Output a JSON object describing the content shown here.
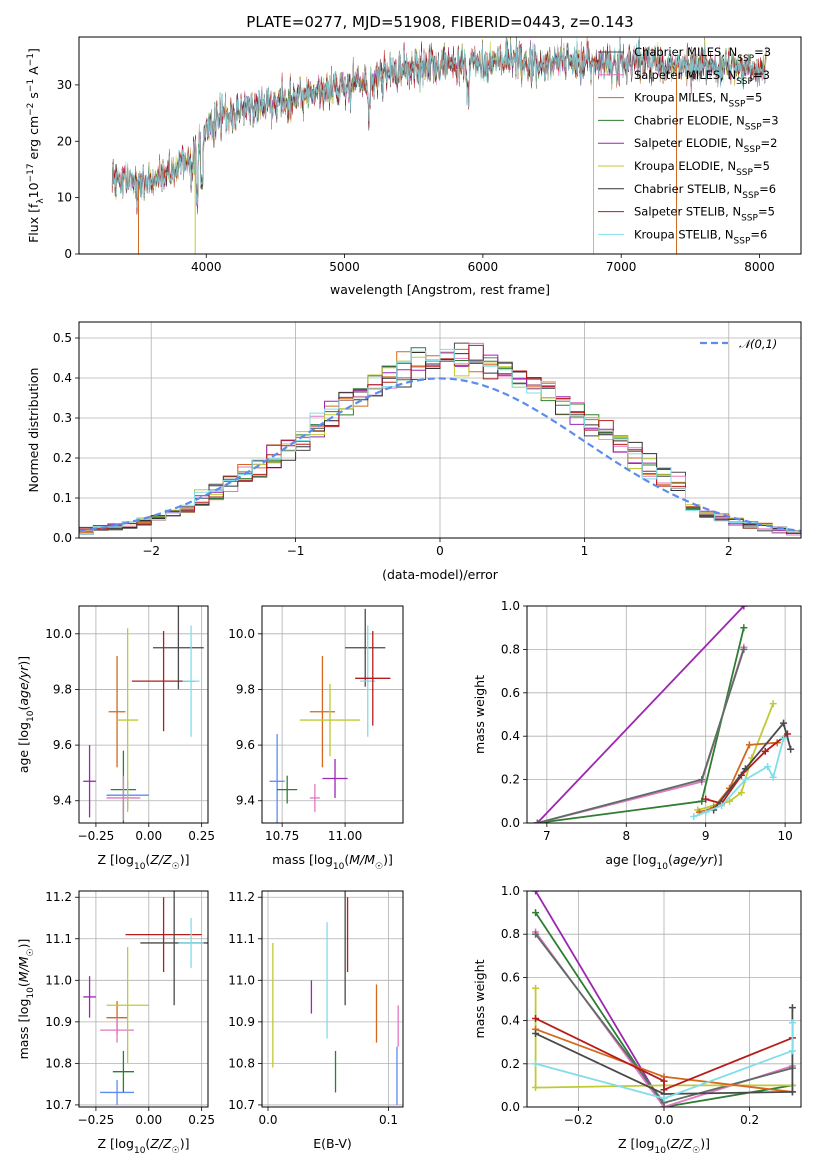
{
  "chart_data": [
    {
      "id": "spectrum",
      "type": "line",
      "title": "PLATE=0277, MJD=51908, FIBERID=0443, z=0.143",
      "xlabel": "wavelength [Angstrom, rest frame]",
      "ylabel": "Flux [f_λ10^-17 erg cm^-2 s^-1 A^-1]",
      "xlim": [
        3080,
        8300
      ],
      "ylim": [
        0,
        38.5
      ],
      "xticks": [
        4000,
        5000,
        6000,
        7000,
        8000
      ],
      "yticks": [
        0,
        10,
        20,
        30
      ],
      "grid": false,
      "legend_position": "upper-right",
      "series": [
        {
          "name": "Chabrier MILES, N_SSP=3",
          "color": "#4a4a4a",
          "x_range": [
            3320,
            8050
          ]
        },
        {
          "name": "Salpeter MILES, N_SSP=3",
          "color": "#e377c2",
          "x_range": [
            3320,
            8050
          ]
        },
        {
          "name": "Kroupa MILES, N_SSP=5",
          "color": "#d2691e",
          "x_range": [
            3320,
            8050
          ]
        },
        {
          "name": "Chabrier ELODIE, N_SSP=3",
          "color": "#2e7d32",
          "x_range": [
            3320,
            8050
          ]
        },
        {
          "name": "Salpeter ELODIE, N_SSP=2",
          "color": "#9c27b0",
          "x_range": [
            3320,
            8050
          ]
        },
        {
          "name": "Kroupa ELODIE, N_SSP=5",
          "color": "#c0ca33",
          "x_range": [
            3320,
            8050
          ]
        },
        {
          "name": "Chabrier STELIB, N_SSP=6",
          "color": "#333333",
          "x_range": [
            3320,
            8050
          ]
        },
        {
          "name": "Salpeter STELIB, N_SSP=5",
          "color": "#b71c1c",
          "x_range": [
            3320,
            8050
          ]
        },
        {
          "name": "Kroupa STELIB, N_SSP=6",
          "color": "#80deea",
          "x_range": [
            3320,
            8050
          ]
        }
      ],
      "continuum": [
        [
          3320,
          13
        ],
        [
          3500,
          12
        ],
        [
          3700,
          14
        ],
        [
          3900,
          17
        ],
        [
          4000,
          22
        ],
        [
          4200,
          25
        ],
        [
          4500,
          27
        ],
        [
          5000,
          30
        ],
        [
          5500,
          33
        ],
        [
          6000,
          34
        ],
        [
          6500,
          34
        ],
        [
          7000,
          34
        ],
        [
          7500,
          33.5
        ],
        [
          8050,
          33
        ]
      ],
      "model_drop_edges": [
        3510,
        3920,
        6800,
        7400
      ]
    },
    {
      "id": "residuals",
      "type": "histogram",
      "xlabel": "(data-model)/error",
      "ylabel": "Normed distribution",
      "xlim": [
        -2.5,
        2.5
      ],
      "ylim": [
        0,
        0.54
      ],
      "xticks": [
        -2,
        -1,
        0,
        1,
        2
      ],
      "yticks": [
        0.0,
        0.1,
        0.2,
        0.3,
        0.4,
        0.5
      ],
      "grid": true,
      "legend": "𝒩(0,1)",
      "legend_position": "upper-right",
      "bin_width": 0.1,
      "reference_curve": {
        "name": "𝒩(0,1)",
        "color": "#5b8def",
        "mean": 0,
        "sigma": 1
      }
    },
    {
      "id": "age-vs-Z",
      "type": "errorbar",
      "xlabel": "Z [log10(Z/Z☉)]",
      "ylabel": "age [log10(age/yr)]",
      "xlim": [
        -0.33,
        0.28
      ],
      "ylim": [
        9.32,
        10.1
      ],
      "xticks": [
        -0.25,
        0.0,
        0.25
      ],
      "xticklabels": [
        "−0.25",
        "0.00",
        "0.25"
      ],
      "yticks": [
        9.4,
        9.6,
        9.8,
        10.0
      ],
      "grid": true,
      "points": [
        {
          "x": -0.28,
          "y": 9.47,
          "xe": 0.03,
          "ye": 0.13,
          "color": "#9c27b0"
        },
        {
          "x": -0.15,
          "y": 9.72,
          "xe": 0.04,
          "ye": 0.2,
          "color": "#d2691e"
        },
        {
          "x": -0.12,
          "y": 9.44,
          "xe": 0.06,
          "ye": 0.14,
          "color": "#2e7d32"
        },
        {
          "x": -0.1,
          "y": 9.42,
          "xe": 0.1,
          "ye": 0.05,
          "color": "#5b8def"
        },
        {
          "x": -0.12,
          "y": 9.41,
          "xe": 0.08,
          "ye": 0.08,
          "color": "#e377c2"
        },
        {
          "x": -0.1,
          "y": 9.69,
          "xe": 0.05,
          "ye": 0.33,
          "color": "#c0ca33"
        },
        {
          "x": 0.07,
          "y": 9.83,
          "xe": 0.15,
          "ye": 0.18,
          "color": "#b71c1c"
        },
        {
          "x": 0.14,
          "y": 9.95,
          "xe": 0.12,
          "ye": 0.15,
          "color": "#4a4a4a"
        },
        {
          "x": 0.2,
          "y": 9.83,
          "xe": 0.04,
          "ye": 0.2,
          "color": "#80deea"
        }
      ]
    },
    {
      "id": "age-vs-mass",
      "type": "errorbar",
      "xlabel": "mass [log10(M/M☉)]",
      "ylabel": "",
      "xlim": [
        10.67,
        11.23
      ],
      "ylim": [
        9.32,
        10.1
      ],
      "xticks": [
        10.75,
        11.0
      ],
      "xticklabels": [
        "10.75",
        "11.00"
      ],
      "yticks": [
        9.4,
        9.6,
        9.8,
        10.0
      ],
      "grid": true,
      "points": [
        {
          "x": 10.73,
          "y": 9.47,
          "xe": 0.03,
          "ye": 0.17,
          "color": "#5b8def"
        },
        {
          "x": 10.77,
          "y": 9.44,
          "xe": 0.04,
          "ye": 0.05,
          "color": "#2e7d32"
        },
        {
          "x": 10.91,
          "y": 9.72,
          "xe": 0.05,
          "ye": 0.2,
          "color": "#d2691e"
        },
        {
          "x": 10.94,
          "y": 9.69,
          "xe": 0.12,
          "ye": 0.13,
          "color": "#c0ca33"
        },
        {
          "x": 10.88,
          "y": 9.41,
          "xe": 0.02,
          "ye": 0.05,
          "color": "#e377c2"
        },
        {
          "x": 10.96,
          "y": 9.48,
          "xe": 0.05,
          "ye": 0.07,
          "color": "#9c27b0"
        },
        {
          "x": 11.08,
          "y": 9.95,
          "xe": 0.08,
          "ye": 0.14,
          "color": "#4a4a4a"
        },
        {
          "x": 11.09,
          "y": 9.83,
          "xe": 0.03,
          "ye": 0.2,
          "color": "#80deea"
        },
        {
          "x": 11.11,
          "y": 9.84,
          "xe": 0.07,
          "ye": 0.17,
          "color": "#b71c1c"
        }
      ]
    },
    {
      "id": "weight-vs-age",
      "type": "line",
      "xlabel": "age [log10(age/yr)]",
      "ylabel": "mass weight",
      "xlim": [
        6.75,
        10.2
      ],
      "ylim": [
        0.0,
        1.0
      ],
      "xticks": [
        7,
        8,
        9,
        10
      ],
      "yticks": [
        0.0,
        0.2,
        0.4,
        0.6,
        0.8,
        1.0
      ],
      "grid": true,
      "series": [
        {
          "name": "Salpeter ELODIE",
          "color": "#9c27b0",
          "points": [
            [
              6.88,
              0.0
            ],
            [
              9.48,
              1.0
            ]
          ]
        },
        {
          "name": "Chabrier ELODIE",
          "color": "#2e7d32",
          "points": [
            [
              6.88,
              0.0
            ],
            [
              8.95,
              0.1
            ],
            [
              9.48,
              0.9
            ]
          ]
        },
        {
          "name": "Salpeter MILES",
          "color": "#e377c2",
          "points": [
            [
              6.88,
              0.0
            ],
            [
              8.95,
              0.19
            ],
            [
              9.48,
              0.81
            ]
          ]
        },
        {
          "name": "Chabrier MILES",
          "color": "#5b6e63",
          "points": [
            [
              6.88,
              0.0
            ],
            [
              8.95,
              0.2
            ],
            [
              9.48,
              0.8
            ]
          ]
        },
        {
          "name": "Kroupa ELODIE",
          "color": "#c0ca33",
          "points": [
            [
              8.9,
              0.06
            ],
            [
              9.1,
              0.08
            ],
            [
              9.3,
              0.1
            ],
            [
              9.45,
              0.14
            ],
            [
              9.58,
              0.3
            ],
            [
              9.85,
              0.55
            ]
          ]
        },
        {
          "name": "Kroupa MILES",
          "color": "#d2691e",
          "points": [
            [
              8.92,
              0.05
            ],
            [
              9.1,
              0.07
            ],
            [
              9.3,
              0.16
            ],
            [
              9.55,
              0.36
            ],
            [
              9.9,
              0.37
            ]
          ]
        },
        {
          "name": "Salpeter STELIB",
          "color": "#b71c1c",
          "points": [
            [
              9.0,
              0.11
            ],
            [
              9.2,
              0.09
            ],
            [
              9.45,
              0.22
            ],
            [
              9.75,
              0.33
            ],
            [
              10.03,
              0.41
            ]
          ]
        },
        {
          "name": "Chabrier STELIB",
          "color": "#4a4a4a",
          "points": [
            [
              9.1,
              0.06
            ],
            [
              9.5,
              0.25
            ],
            [
              9.98,
              0.46
            ],
            [
              10.07,
              0.34
            ]
          ]
        },
        {
          "name": "Kroupa STELIB",
          "color": "#80deea",
          "points": [
            [
              8.85,
              0.03
            ],
            [
              9.0,
              0.05
            ],
            [
              9.2,
              0.08
            ],
            [
              9.5,
              0.2
            ],
            [
              9.78,
              0.26
            ],
            [
              9.85,
              0.21
            ],
            [
              9.98,
              0.39
            ]
          ]
        }
      ]
    },
    {
      "id": "mass-vs-Z",
      "type": "errorbar",
      "xlabel": "Z [log10(Z/Z☉)]",
      "ylabel": "mass [log10(M/M☉)]",
      "xlim": [
        -0.33,
        0.28
      ],
      "ylim": [
        10.695,
        11.215
      ],
      "xticks": [
        -0.25,
        0.0,
        0.25
      ],
      "xticklabels": [
        "−0.25",
        "0.00",
        "0.25"
      ],
      "yticks": [
        10.7,
        10.8,
        10.9,
        11.0,
        11.1,
        11.2
      ],
      "grid": true,
      "points": [
        {
          "x": -0.28,
          "y": 10.96,
          "xe": 0.03,
          "ye": 0.05,
          "color": "#9c27b0"
        },
        {
          "x": -0.15,
          "y": 10.91,
          "xe": 0.05,
          "ye": 0.04,
          "color": "#d2691e"
        },
        {
          "x": -0.12,
          "y": 10.78,
          "xe": 0.05,
          "ye": 0.05,
          "color": "#2e7d32"
        },
        {
          "x": -0.15,
          "y": 10.73,
          "xe": 0.08,
          "ye": 0.03,
          "color": "#5b8def"
        },
        {
          "x": -0.15,
          "y": 10.88,
          "xe": 0.08,
          "ye": 0.03,
          "color": "#e377c2"
        },
        {
          "x": -0.1,
          "y": 10.94,
          "xe": 0.1,
          "ye": 0.14,
          "color": "#c0ca33"
        },
        {
          "x": 0.07,
          "y": 11.11,
          "xe": 0.18,
          "ye": 0.09,
          "color": "#b71c1c"
        },
        {
          "x": 0.12,
          "y": 11.09,
          "xe": 0.16,
          "ye": 0.15,
          "color": "#4a4a4a"
        },
        {
          "x": 0.2,
          "y": 11.09,
          "xe": 0.06,
          "ye": 0.06,
          "color": "#80deea"
        }
      ]
    },
    {
      "id": "mass-vs-EBV",
      "type": "errorbar",
      "xlabel": "E(B-V)",
      "ylabel": "",
      "xlim": [
        -0.005,
        0.112
      ],
      "ylim": [
        10.695,
        11.215
      ],
      "xticks": [
        0.0,
        0.1
      ],
      "xticklabels": [
        "0.0",
        "0.1"
      ],
      "yticks": [
        10.7,
        10.8,
        10.9,
        11.0,
        11.1,
        11.2
      ],
      "grid": true,
      "points": [
        {
          "x": 0.004,
          "y": 10.94,
          "xe": 0,
          "ye": 0.15,
          "color": "#c0ca33"
        },
        {
          "x": 0.036,
          "y": 10.96,
          "xe": 0,
          "ye": 0.04,
          "color": "#9c27b0"
        },
        {
          "x": 0.049,
          "y": 11.0,
          "xe": 0,
          "ye": 0.14,
          "color": "#80deea"
        },
        {
          "x": 0.056,
          "y": 10.78,
          "xe": 0,
          "ye": 0.05,
          "color": "#2e7d32"
        },
        {
          "x": 0.064,
          "y": 11.09,
          "xe": 0,
          "ye": 0.15,
          "color": "#4a4a4a"
        },
        {
          "x": 0.066,
          "y": 11.11,
          "xe": 0,
          "ye": 0.09,
          "color": "#b71c1c"
        },
        {
          "x": 0.09,
          "y": 10.92,
          "xe": 0,
          "ye": 0.07,
          "color": "#d2691e"
        },
        {
          "x": 0.107,
          "y": 10.77,
          "xe": 0,
          "ye": 0.07,
          "color": "#5b8def"
        },
        {
          "x": 0.108,
          "y": 10.89,
          "xe": 0,
          "ye": 0.05,
          "color": "#e377c2"
        }
      ]
    },
    {
      "id": "weight-vs-Z",
      "type": "line",
      "xlabel": "Z [log10(Z/Z☉)]",
      "ylabel": "mass weight",
      "xlim": [
        -0.32,
        0.32
      ],
      "ylim": [
        0.0,
        1.0
      ],
      "xticks": [
        -0.2,
        0.0,
        0.2
      ],
      "xticklabels": [
        "−0.2",
        "0.0",
        "0.2"
      ],
      "yticks": [
        0.0,
        0.2,
        0.4,
        0.6,
        0.8,
        1.0
      ],
      "grid": true,
      "series": [
        {
          "name": "Salpeter ELODIE",
          "color": "#9c27b0",
          "points": [
            [
              -0.3,
              1.0
            ],
            [
              0.0,
              0.0
            ]
          ]
        },
        {
          "name": "Chabrier ELODIE",
          "color": "#2e7d32",
          "points": [
            [
              -0.3,
              0.9
            ],
            [
              0.0,
              0.0
            ],
            [
              0.3,
              0.1
            ]
          ]
        },
        {
          "name": "Salpeter MILES",
          "color": "#e377c2",
          "points": [
            [
              -0.3,
              0.81
            ],
            [
              0.0,
              0.0
            ],
            [
              0.3,
              0.19
            ]
          ]
        },
        {
          "name": "Chabrier MILES",
          "color": "#5b6e63",
          "points": [
            [
              -0.3,
              0.8
            ],
            [
              0.0,
              0.02
            ],
            [
              0.3,
              0.18
            ]
          ]
        },
        {
          "name": "Kroupa ELODIE",
          "color": "#c0ca33",
          "points": [
            [
              -0.3,
              0.55
            ],
            [
              -0.3,
              0.09
            ],
            [
              0.0,
              0.1
            ],
            [
              0.3,
              0.1
            ]
          ]
        },
        {
          "name": "Kroupa MILES",
          "color": "#d2691e",
          "points": [
            [
              -0.3,
              0.36
            ],
            [
              0.0,
              0.14
            ],
            [
              0.3,
              0.07
            ]
          ]
        },
        {
          "name": "Salpeter STELIB",
          "color": "#b71c1c",
          "points": [
            [
              -0.3,
              0.41
            ],
            [
              0.0,
              0.12
            ],
            [
              0.0,
              0.08
            ],
            [
              0.3,
              0.32
            ]
          ]
        },
        {
          "name": "Chabrier STELIB",
          "color": "#4a4a4a",
          "points": [
            [
              -0.3,
              0.34
            ],
            [
              0.0,
              0.06
            ],
            [
              0.3,
              0.07
            ],
            [
              0.3,
              0.46
            ]
          ]
        },
        {
          "name": "Kroupa STELIB",
          "color": "#80deea",
          "points": [
            [
              -0.3,
              0.2
            ],
            [
              0.0,
              0.04
            ],
            [
              0.3,
              0.26
            ],
            [
              0.3,
              0.39
            ]
          ]
        }
      ]
    }
  ]
}
